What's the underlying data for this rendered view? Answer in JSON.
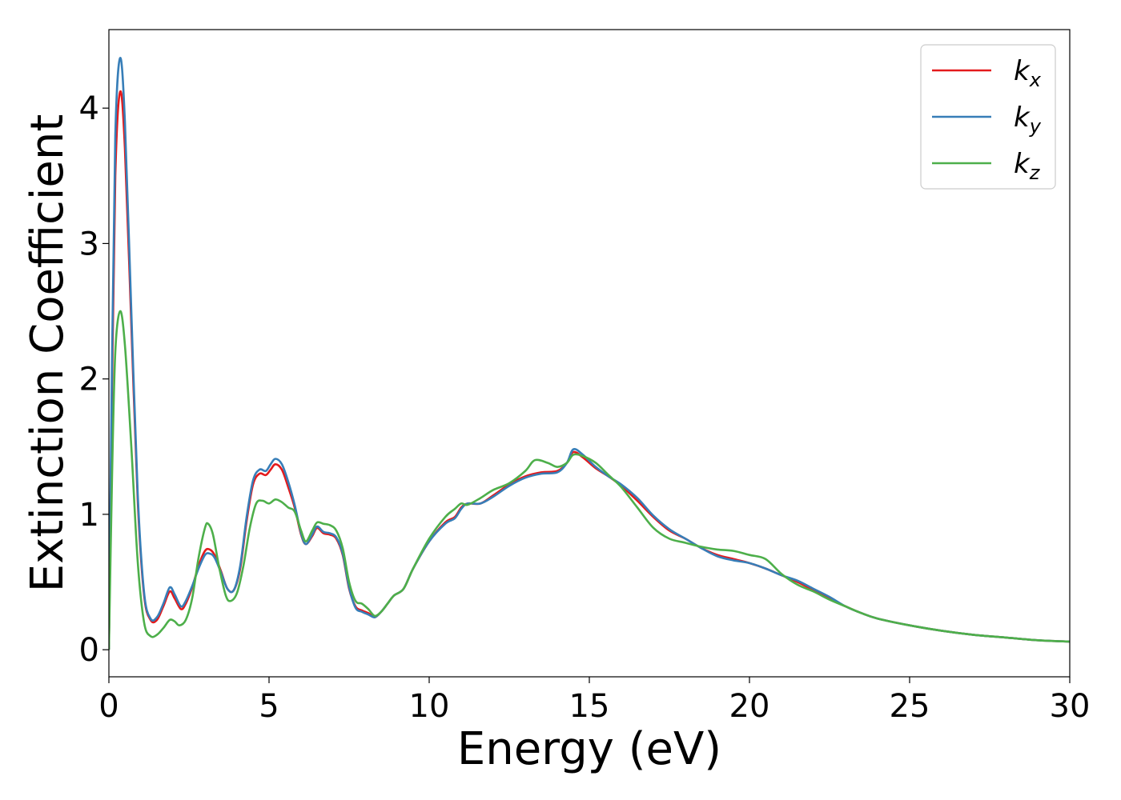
{
  "chart_data": {
    "type": "line",
    "title": "",
    "xlabel": "Energy (eV)",
    "ylabel": "Extinction Coefficient",
    "xlim": [
      0,
      30
    ],
    "ylim": [
      -0.2,
      4.58
    ],
    "xticks": [
      0,
      5,
      10,
      15,
      20,
      25,
      30
    ],
    "yticks": [
      0,
      1,
      2,
      3,
      4
    ],
    "grid": false,
    "legend_position": "top-right",
    "series": [
      {
        "name": "k",
        "subscript": "x",
        "color": "#e41a1c",
        "points": [
          [
            0,
            0.0
          ],
          [
            0.1,
            2.0
          ],
          [
            0.2,
            3.5
          ],
          [
            0.35,
            4.12
          ],
          [
            0.5,
            3.7
          ],
          [
            0.7,
            2.4
          ],
          [
            0.9,
            1.1
          ],
          [
            1.1,
            0.4
          ],
          [
            1.3,
            0.22
          ],
          [
            1.5,
            0.22
          ],
          [
            1.7,
            0.32
          ],
          [
            1.9,
            0.43
          ],
          [
            2.05,
            0.38
          ],
          [
            2.25,
            0.3
          ],
          [
            2.4,
            0.34
          ],
          [
            2.6,
            0.46
          ],
          [
            2.8,
            0.62
          ],
          [
            3.0,
            0.73
          ],
          [
            3.15,
            0.74
          ],
          [
            3.3,
            0.7
          ],
          [
            3.5,
            0.58
          ],
          [
            3.7,
            0.45
          ],
          [
            3.9,
            0.44
          ],
          [
            4.1,
            0.6
          ],
          [
            4.3,
            0.95
          ],
          [
            4.5,
            1.22
          ],
          [
            4.7,
            1.3
          ],
          [
            4.9,
            1.29
          ],
          [
            5.05,
            1.33
          ],
          [
            5.2,
            1.37
          ],
          [
            5.4,
            1.33
          ],
          [
            5.6,
            1.2
          ],
          [
            5.8,
            1.05
          ],
          [
            6.0,
            0.85
          ],
          [
            6.15,
            0.78
          ],
          [
            6.35,
            0.84
          ],
          [
            6.5,
            0.9
          ],
          [
            6.7,
            0.86
          ],
          [
            6.9,
            0.85
          ],
          [
            7.1,
            0.82
          ],
          [
            7.3,
            0.7
          ],
          [
            7.5,
            0.45
          ],
          [
            7.7,
            0.32
          ],
          [
            7.9,
            0.29
          ],
          [
            8.1,
            0.27
          ],
          [
            8.3,
            0.24
          ],
          [
            8.5,
            0.28
          ],
          [
            8.7,
            0.34
          ],
          [
            8.9,
            0.4
          ],
          [
            9.2,
            0.45
          ],
          [
            9.5,
            0.6
          ],
          [
            10.0,
            0.8
          ],
          [
            10.5,
            0.94
          ],
          [
            10.8,
            0.98
          ],
          [
            11.0,
            1.05
          ],
          [
            11.2,
            1.08
          ],
          [
            11.6,
            1.08
          ],
          [
            12.0,
            1.14
          ],
          [
            12.5,
            1.22
          ],
          [
            13.0,
            1.28
          ],
          [
            13.5,
            1.31
          ],
          [
            14.0,
            1.32
          ],
          [
            14.3,
            1.38
          ],
          [
            14.5,
            1.46
          ],
          [
            14.8,
            1.42
          ],
          [
            15.2,
            1.34
          ],
          [
            15.6,
            1.28
          ],
          [
            16.0,
            1.21
          ],
          [
            16.5,
            1.1
          ],
          [
            17.0,
            0.98
          ],
          [
            17.5,
            0.88
          ],
          [
            18.0,
            0.82
          ],
          [
            18.5,
            0.75
          ],
          [
            19.0,
            0.7
          ],
          [
            19.5,
            0.67
          ],
          [
            20.0,
            0.64
          ],
          [
            20.5,
            0.6
          ],
          [
            21.0,
            0.55
          ],
          [
            21.5,
            0.5
          ],
          [
            22.0,
            0.44
          ],
          [
            22.5,
            0.38
          ],
          [
            23.0,
            0.32
          ],
          [
            23.5,
            0.27
          ],
          [
            24.0,
            0.23
          ],
          [
            25.0,
            0.18
          ],
          [
            26.0,
            0.14
          ],
          [
            27.0,
            0.11
          ],
          [
            28.0,
            0.09
          ],
          [
            29.0,
            0.07
          ],
          [
            30.0,
            0.06
          ]
        ]
      },
      {
        "name": "k",
        "subscript": "y",
        "color": "#377eb8",
        "points": [
          [
            0,
            0.0
          ],
          [
            0.1,
            2.2
          ],
          [
            0.2,
            3.8
          ],
          [
            0.35,
            4.37
          ],
          [
            0.5,
            3.9
          ],
          [
            0.7,
            2.5
          ],
          [
            0.9,
            1.15
          ],
          [
            1.1,
            0.42
          ],
          [
            1.3,
            0.23
          ],
          [
            1.5,
            0.24
          ],
          [
            1.7,
            0.34
          ],
          [
            1.9,
            0.46
          ],
          [
            2.05,
            0.41
          ],
          [
            2.25,
            0.32
          ],
          [
            2.4,
            0.36
          ],
          [
            2.6,
            0.47
          ],
          [
            2.8,
            0.6
          ],
          [
            3.0,
            0.7
          ],
          [
            3.15,
            0.71
          ],
          [
            3.3,
            0.68
          ],
          [
            3.5,
            0.57
          ],
          [
            3.7,
            0.45
          ],
          [
            3.9,
            0.44
          ],
          [
            4.1,
            0.62
          ],
          [
            4.3,
            0.98
          ],
          [
            4.5,
            1.25
          ],
          [
            4.7,
            1.33
          ],
          [
            4.9,
            1.32
          ],
          [
            5.05,
            1.37
          ],
          [
            5.2,
            1.41
          ],
          [
            5.4,
            1.37
          ],
          [
            5.6,
            1.24
          ],
          [
            5.8,
            1.07
          ],
          [
            6.0,
            0.86
          ],
          [
            6.15,
            0.78
          ],
          [
            6.35,
            0.85
          ],
          [
            6.5,
            0.91
          ],
          [
            6.7,
            0.87
          ],
          [
            6.9,
            0.86
          ],
          [
            7.1,
            0.83
          ],
          [
            7.3,
            0.71
          ],
          [
            7.5,
            0.46
          ],
          [
            7.7,
            0.31
          ],
          [
            7.9,
            0.28
          ],
          [
            8.1,
            0.26
          ],
          [
            8.3,
            0.24
          ],
          [
            8.5,
            0.28
          ],
          [
            8.7,
            0.34
          ],
          [
            8.9,
            0.4
          ],
          [
            9.2,
            0.45
          ],
          [
            9.5,
            0.6
          ],
          [
            10.0,
            0.8
          ],
          [
            10.5,
            0.93
          ],
          [
            10.8,
            0.97
          ],
          [
            11.0,
            1.04
          ],
          [
            11.2,
            1.08
          ],
          [
            11.6,
            1.08
          ],
          [
            12.0,
            1.13
          ],
          [
            12.5,
            1.21
          ],
          [
            13.0,
            1.27
          ],
          [
            13.5,
            1.3
          ],
          [
            14.0,
            1.31
          ],
          [
            14.3,
            1.38
          ],
          [
            14.5,
            1.48
          ],
          [
            14.8,
            1.44
          ],
          [
            15.2,
            1.35
          ],
          [
            15.6,
            1.28
          ],
          [
            16.0,
            1.22
          ],
          [
            16.5,
            1.12
          ],
          [
            17.0,
            0.99
          ],
          [
            17.5,
            0.89
          ],
          [
            18.0,
            0.82
          ],
          [
            18.5,
            0.75
          ],
          [
            19.0,
            0.69
          ],
          [
            19.5,
            0.66
          ],
          [
            20.0,
            0.64
          ],
          [
            20.5,
            0.6
          ],
          [
            21.0,
            0.55
          ],
          [
            21.5,
            0.51
          ],
          [
            22.0,
            0.45
          ],
          [
            22.5,
            0.39
          ],
          [
            23.0,
            0.32
          ],
          [
            23.5,
            0.27
          ],
          [
            24.0,
            0.23
          ],
          [
            25.0,
            0.18
          ],
          [
            26.0,
            0.14
          ],
          [
            27.0,
            0.11
          ],
          [
            28.0,
            0.09
          ],
          [
            29.0,
            0.07
          ],
          [
            30.0,
            0.06
          ]
        ]
      },
      {
        "name": "k",
        "subscript": "z",
        "color": "#4daf4a",
        "points": [
          [
            0,
            0.0
          ],
          [
            0.1,
            1.3
          ],
          [
            0.2,
            2.2
          ],
          [
            0.35,
            2.5
          ],
          [
            0.5,
            2.25
          ],
          [
            0.7,
            1.5
          ],
          [
            0.9,
            0.65
          ],
          [
            1.1,
            0.2
          ],
          [
            1.3,
            0.1
          ],
          [
            1.5,
            0.11
          ],
          [
            1.7,
            0.16
          ],
          [
            1.9,
            0.22
          ],
          [
            2.05,
            0.21
          ],
          [
            2.2,
            0.18
          ],
          [
            2.4,
            0.22
          ],
          [
            2.6,
            0.38
          ],
          [
            2.8,
            0.68
          ],
          [
            3.0,
            0.9
          ],
          [
            3.1,
            0.93
          ],
          [
            3.25,
            0.85
          ],
          [
            3.45,
            0.6
          ],
          [
            3.65,
            0.4
          ],
          [
            3.8,
            0.36
          ],
          [
            4.0,
            0.42
          ],
          [
            4.2,
            0.62
          ],
          [
            4.4,
            0.9
          ],
          [
            4.6,
            1.08
          ],
          [
            4.8,
            1.1
          ],
          [
            5.0,
            1.08
          ],
          [
            5.2,
            1.11
          ],
          [
            5.4,
            1.09
          ],
          [
            5.6,
            1.05
          ],
          [
            5.8,
            1.02
          ],
          [
            6.0,
            0.88
          ],
          [
            6.15,
            0.8
          ],
          [
            6.35,
            0.88
          ],
          [
            6.5,
            0.94
          ],
          [
            6.7,
            0.93
          ],
          [
            6.9,
            0.92
          ],
          [
            7.1,
            0.88
          ],
          [
            7.3,
            0.75
          ],
          [
            7.5,
            0.5
          ],
          [
            7.7,
            0.36
          ],
          [
            7.9,
            0.34
          ],
          [
            8.1,
            0.3
          ],
          [
            8.3,
            0.25
          ],
          [
            8.5,
            0.28
          ],
          [
            8.7,
            0.34
          ],
          [
            8.9,
            0.4
          ],
          [
            9.2,
            0.45
          ],
          [
            9.5,
            0.6
          ],
          [
            10.0,
            0.82
          ],
          [
            10.5,
            0.98
          ],
          [
            10.8,
            1.04
          ],
          [
            11.0,
            1.08
          ],
          [
            11.2,
            1.07
          ],
          [
            11.6,
            1.12
          ],
          [
            12.0,
            1.18
          ],
          [
            12.5,
            1.23
          ],
          [
            13.0,
            1.32
          ],
          [
            13.3,
            1.4
          ],
          [
            13.7,
            1.38
          ],
          [
            14.0,
            1.35
          ],
          [
            14.3,
            1.38
          ],
          [
            14.5,
            1.44
          ],
          [
            14.8,
            1.43
          ],
          [
            15.2,
            1.38
          ],
          [
            15.6,
            1.29
          ],
          [
            16.0,
            1.2
          ],
          [
            16.5,
            1.05
          ],
          [
            17.0,
            0.9
          ],
          [
            17.5,
            0.82
          ],
          [
            18.0,
            0.79
          ],
          [
            18.5,
            0.76
          ],
          [
            19.0,
            0.74
          ],
          [
            19.5,
            0.73
          ],
          [
            20.0,
            0.7
          ],
          [
            20.5,
            0.67
          ],
          [
            21.0,
            0.56
          ],
          [
            21.5,
            0.48
          ],
          [
            22.0,
            0.43
          ],
          [
            22.5,
            0.37
          ],
          [
            23.0,
            0.32
          ],
          [
            23.5,
            0.27
          ],
          [
            24.0,
            0.23
          ],
          [
            25.0,
            0.18
          ],
          [
            26.0,
            0.14
          ],
          [
            27.0,
            0.11
          ],
          [
            28.0,
            0.09
          ],
          [
            29.0,
            0.07
          ],
          [
            30.0,
            0.06
          ]
        ]
      }
    ]
  }
}
